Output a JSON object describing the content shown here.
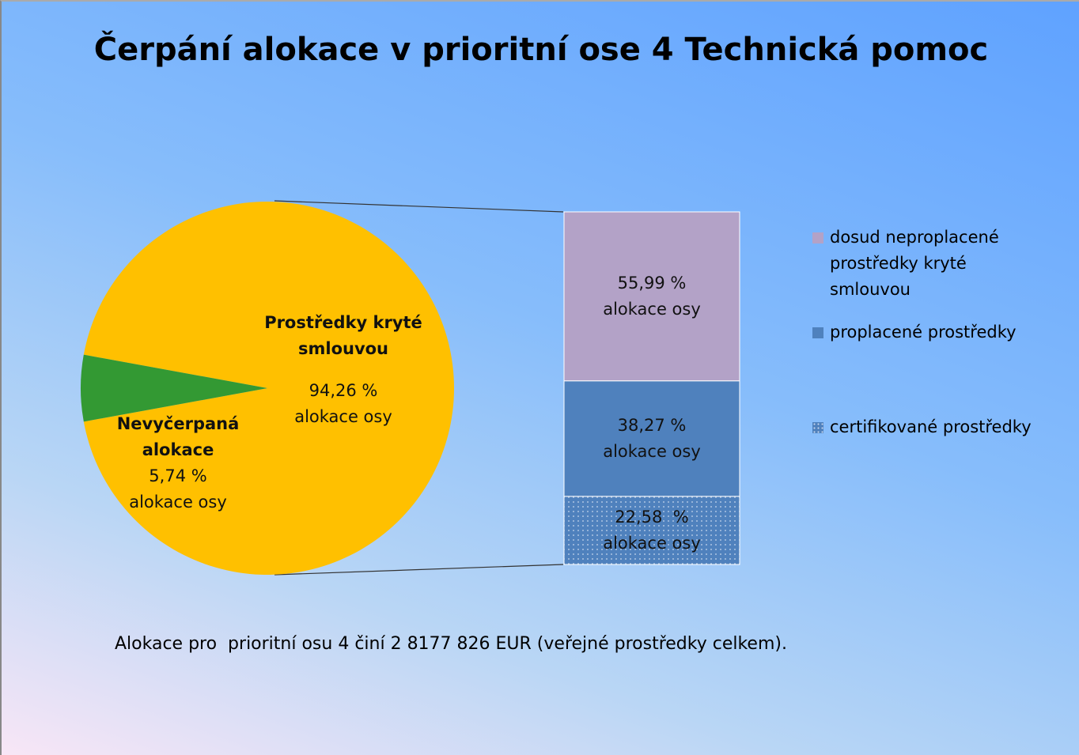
{
  "chart_data": {
    "type": "pie",
    "title": "Čerpání alokace v prioritní ose 4 Technická pomoc",
    "pie": {
      "categories": [
        "Prostředky kryté smlouvou",
        "Nevyčerpaná alokace"
      ],
      "values": [
        94.26,
        5.74
      ],
      "value_labels": [
        "94,26 %",
        "5,74 %"
      ],
      "colors": [
        "#ffc000",
        "#339933"
      ]
    },
    "bar": {
      "series": [
        {
          "name": "dosud neproplacené prostředky kryté smlouvou",
          "color": "#b3a2c7",
          "values": [
            55.99
          ],
          "value_labels": [
            "55,99 %"
          ]
        },
        {
          "name": "proplacené prostředky",
          "color": "#4f81bd",
          "values": [
            38.27
          ],
          "value_labels": [
            "38,27 %"
          ]
        },
        {
          "name": "certifikované prostředky",
          "color": "#4f81bd",
          "pattern": "dots",
          "values": [
            22.58
          ],
          "value_labels": [
            "22,58  %"
          ]
        }
      ]
    },
    "unit_text": "alokace osy",
    "note": "Alokace pro  prioritní osu 4 činí 2 8177 826 EUR (veřejné prostředky celkem)."
  }
}
